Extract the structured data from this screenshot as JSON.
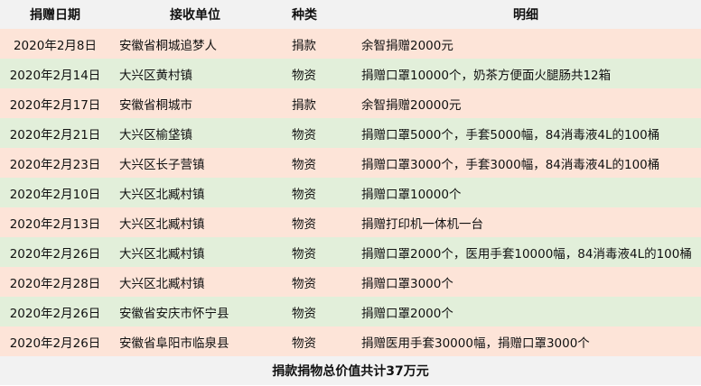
{
  "headers": [
    "捐赠日期",
    "接收单位",
    "种类",
    "明细"
  ],
  "colors": {
    "header_bg": "#f2f2f2",
    "row_odd": "#fde4d8",
    "row_even": "#e2efda"
  },
  "rows": [
    [
      "2020年2月8日",
      "安徽省桐城追梦人",
      "捐款",
      "余智捐赠2000元"
    ],
    [
      "2020年2月14日",
      "大兴区黄村镇",
      "物资",
      "捐赠口罩10000个，奶茶方便面火腿肠共12箱"
    ],
    [
      "2020年2月17日",
      "安徽省桐城市",
      "捐款",
      "余智捐赠20000元"
    ],
    [
      "2020年2月21日",
      "大兴区榆垡镇",
      "物资",
      "捐赠口罩5000个，手套5000幅，84消毒液4L的100桶"
    ],
    [
      "2020年2月23日",
      "大兴区长子营镇",
      "物资",
      "捐赠口罩3000个，手套3000幅，84消毒液4L的100桶"
    ],
    [
      "2020年2月10日",
      "大兴区北臧村镇",
      "物资",
      "捐赠口罩10000个"
    ],
    [
      "2020年2月13日",
      "大兴区北臧村镇",
      "物资",
      "捐赠打印机一体机一台"
    ],
    [
      "2020年2月26日",
      "大兴区北臧村镇",
      "物资",
      "捐赠口罩2000个，医用手套10000幅，84消毒液4L的100桶"
    ],
    [
      "2020年2月28日",
      "大兴区北臧村镇",
      "物资",
      "捐赠口罩3000个"
    ],
    [
      "2020年2月26日",
      "安徽省安庆市怀宁县",
      "物资",
      "捐赠口罩2000个"
    ],
    [
      "2020年2月26日",
      "安徽省阜阳市临泉县",
      "物资",
      "捐赠医用手套30000幅，捐赠口罩3000个"
    ]
  ],
  "footer": "捐款捐物总价值共计37万元"
}
